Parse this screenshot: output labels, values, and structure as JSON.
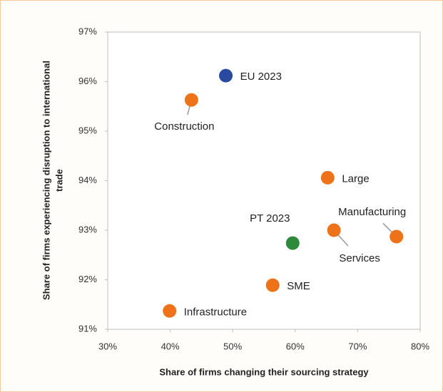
{
  "chart_data": {
    "type": "scatter",
    "xlabel": "Share of firms changing their sourcing strategy",
    "ylabel": [
      "Share of firms experiencing disruption to international",
      "trade"
    ],
    "labels": [
      "EU 2023",
      "Construction",
      "Large",
      "Manufacturing",
      "Services",
      "PT 2023",
      "SME",
      "Infrastructure"
    ],
    "x": [
      48.9,
      43.4,
      65.2,
      76.2,
      66.2,
      59.6,
      56.4,
      39.9
    ],
    "values": [
      96.12,
      95.63,
      94.06,
      92.87,
      93.0,
      92.74,
      91.89,
      91.37
    ],
    "colors": [
      "#2a4aa0",
      "#ee7219",
      "#ee7219",
      "#ee7219",
      "#ee7219",
      "#2e8a3a",
      "#ee7219",
      "#ee7219"
    ],
    "xlim": [
      30,
      80
    ],
    "xticks": [
      {
        "value": 30,
        "label": "30%"
      },
      {
        "value": 40,
        "label": "40%"
      },
      {
        "value": 50,
        "label": "50%"
      },
      {
        "value": 60,
        "label": "60%"
      },
      {
        "value": 70,
        "label": "70%"
      },
      {
        "value": 80,
        "label": "80%"
      }
    ],
    "ylim": [
      91,
      97
    ],
    "yticks": [
      {
        "value": 91,
        "label": "91%"
      },
      {
        "value": 92,
        "label": "92%"
      },
      {
        "value": 93,
        "label": "93%"
      },
      {
        "value": 94,
        "label": "94%"
      },
      {
        "value": 95,
        "label": "95%"
      },
      {
        "value": 96,
        "label": "96%"
      },
      {
        "value": 97,
        "label": "97%"
      }
    ]
  }
}
